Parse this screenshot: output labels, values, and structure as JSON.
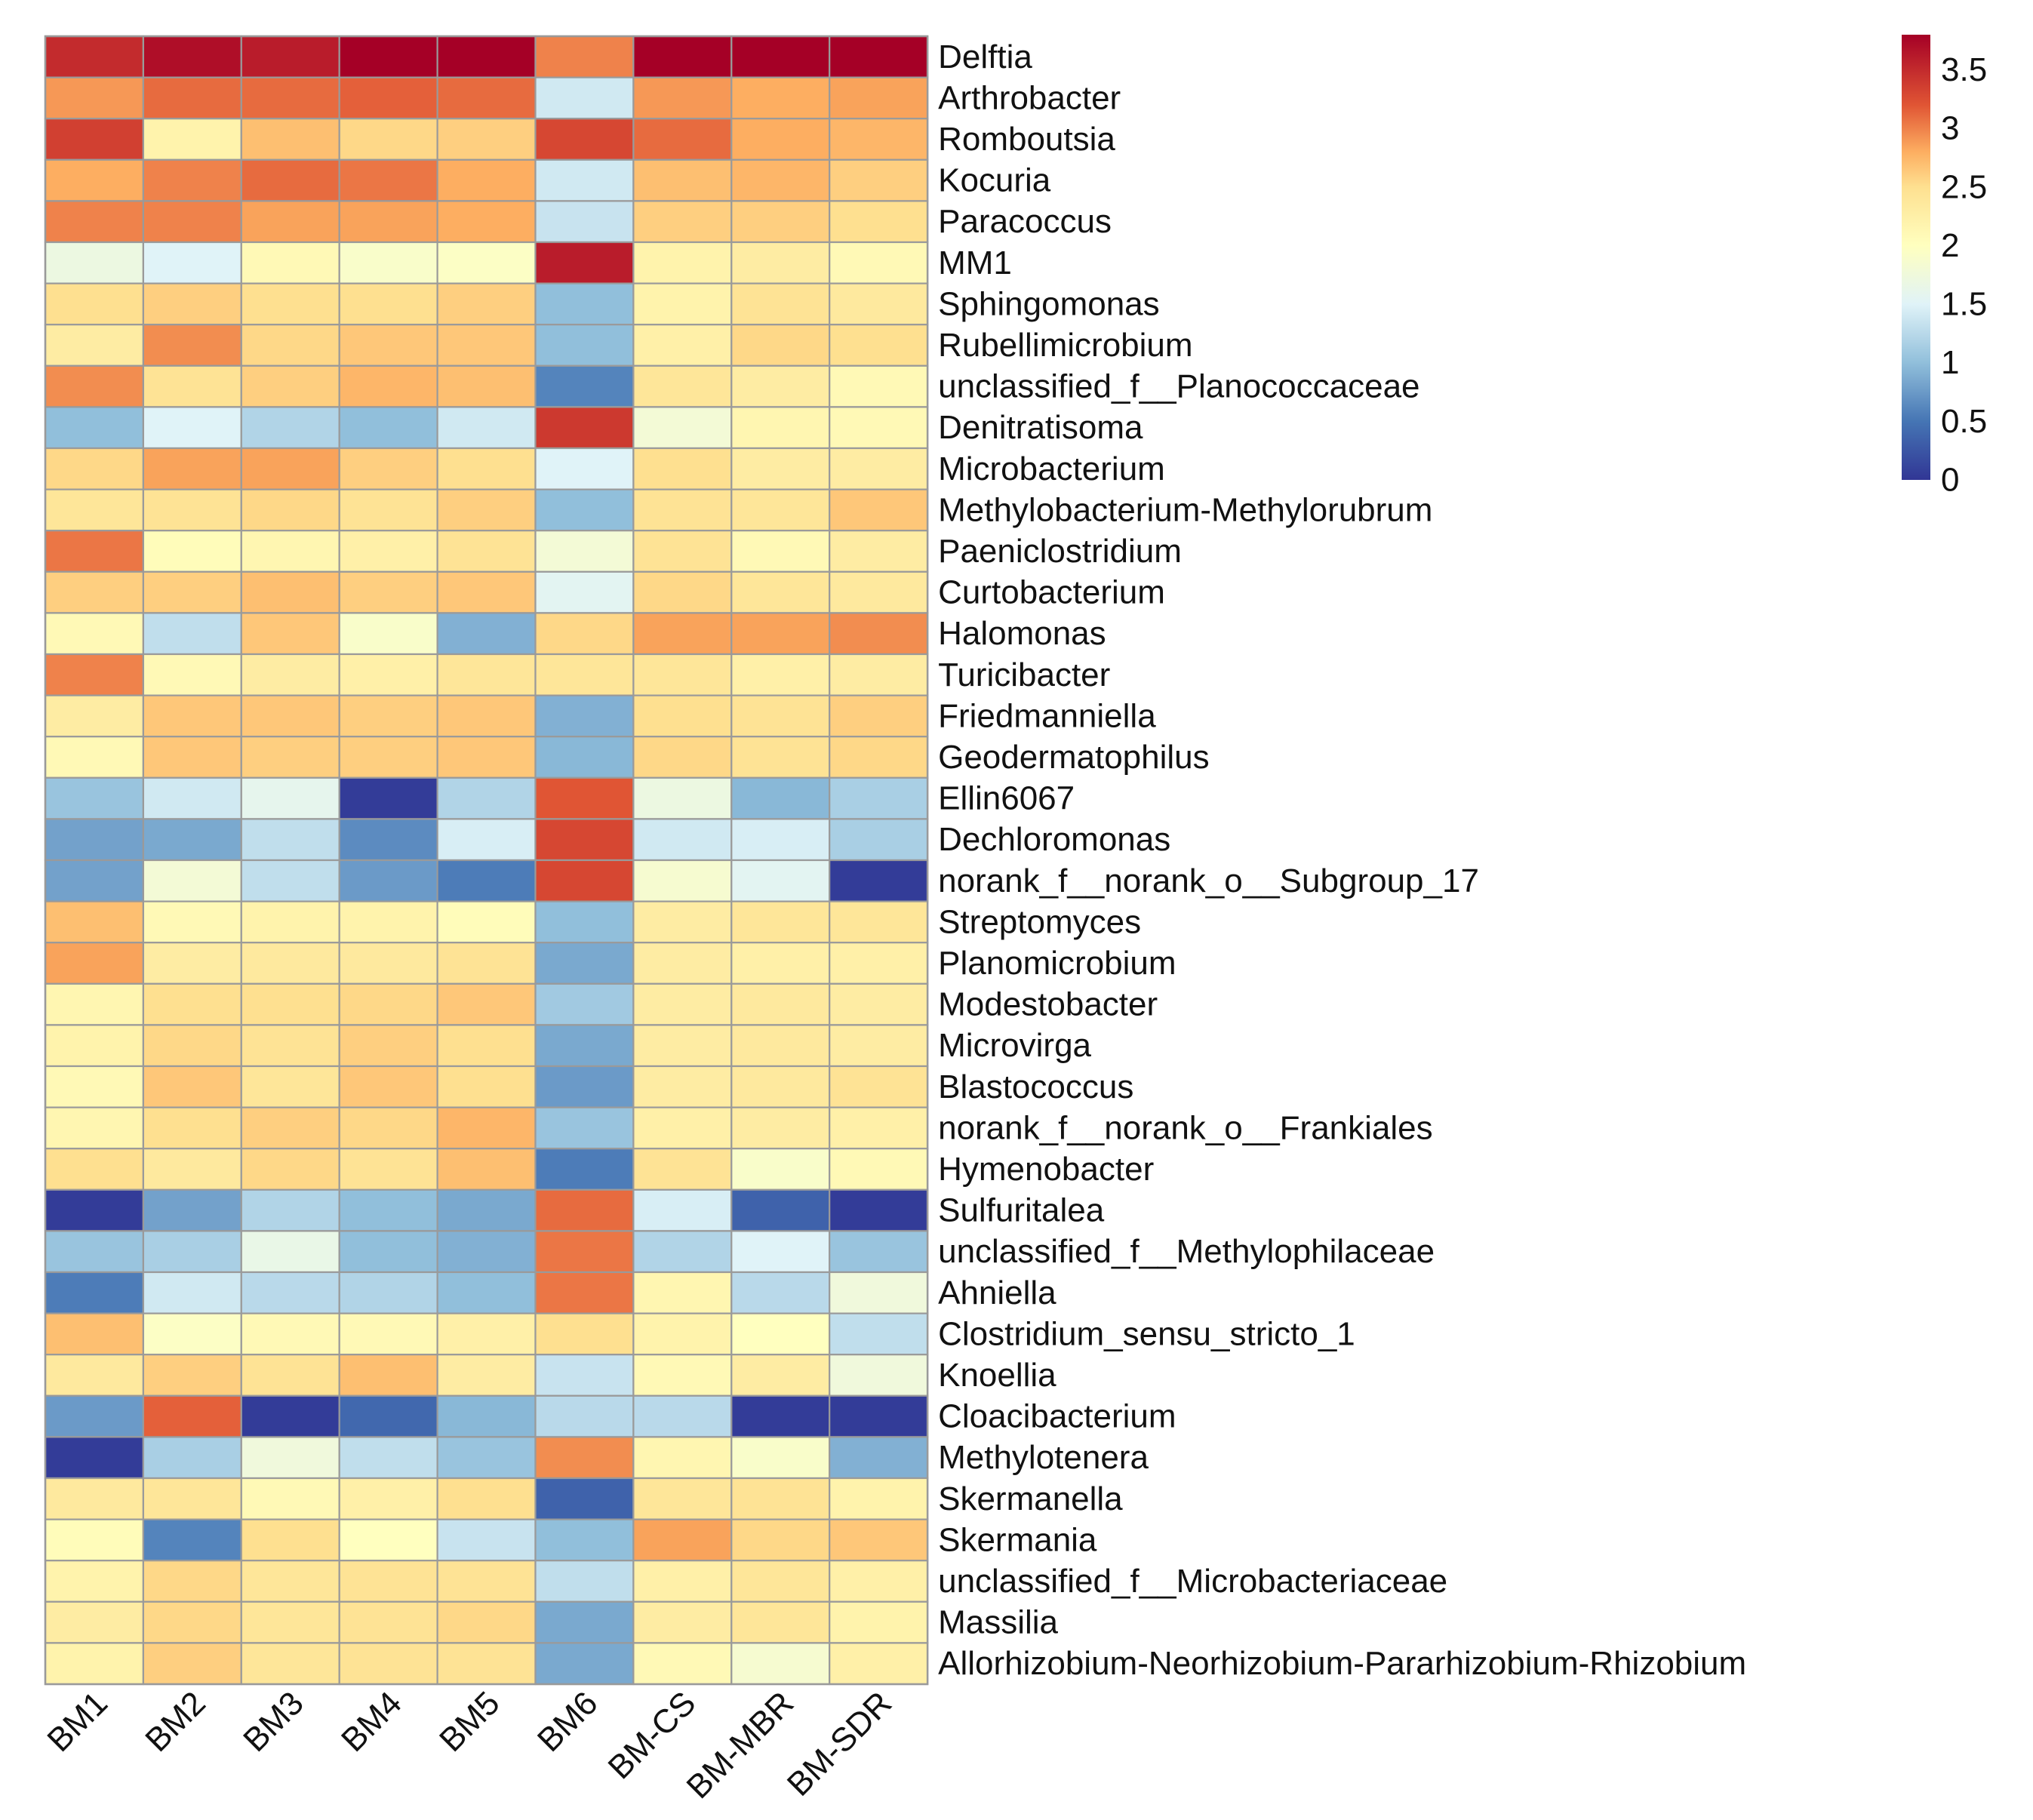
{
  "chart_data": {
    "type": "heatmap",
    "title": "",
    "xlabel": "",
    "ylabel": "",
    "columns": [
      "BM1",
      "BM2",
      "BM3",
      "BM4",
      "BM5",
      "BM6",
      "BM-CS",
      "BM-MBR",
      "BM-SDR"
    ],
    "rows": [
      "Delftia",
      "Arthrobacter",
      "Romboutsia",
      "Kocuria",
      "Paracoccus",
      "MM1",
      "Sphingomonas",
      "Rubellimicrobium",
      "unclassified_f__Planococcaceae",
      "Denitratisoma",
      "Microbacterium",
      "Methylobacterium-Methylorubrum",
      "Paeniclostridium",
      "Curtobacterium",
      "Halomonas",
      "Turicibacter",
      "Friedmanniella",
      "Geodermatophilus",
      "Ellin6067",
      "Dechloromonas",
      "norank_f__norank_o__Subgroup_17",
      "Streptomyces",
      "Planomicrobium",
      "Modestobacter",
      "Microvirga",
      "Blastococcus",
      "norank_f__norank_o__Frankiales",
      "Hymenobacter",
      "Sulfuritalea",
      "unclassified_f__Methylophilaceae",
      "Ahniella",
      "Clostridium_sensu_stricto_1",
      "Knoellia",
      "Cloacibacterium",
      "Methylotenera",
      "Skermanella",
      "Skermania",
      "unclassified_f__Microbacteriaceae",
      "Massilia",
      "Allorhizobium-Neorhizobium-Pararhizobium-Rhizobium"
    ],
    "values": [
      [
        3.5,
        3.7,
        3.6,
        3.8,
        3.8,
        3.0,
        3.8,
        3.8,
        3.8
      ],
      [
        2.9,
        3.1,
        3.1,
        3.15,
        3.1,
        1.4,
        2.9,
        2.8,
        2.85
      ],
      [
        3.35,
        2.2,
        2.7,
        2.55,
        2.6,
        3.3,
        3.1,
        2.8,
        2.75
      ],
      [
        2.8,
        3.0,
        3.1,
        3.05,
        2.8,
        1.4,
        2.7,
        2.75,
        2.6
      ],
      [
        3.0,
        3.0,
        2.85,
        2.85,
        2.8,
        1.35,
        2.6,
        2.6,
        2.5
      ],
      [
        1.7,
        1.5,
        2.1,
        1.9,
        1.95,
        3.6,
        2.2,
        2.3,
        2.1
      ],
      [
        2.5,
        2.6,
        2.5,
        2.5,
        2.6,
        1.0,
        2.2,
        2.45,
        2.35
      ],
      [
        2.3,
        2.95,
        2.55,
        2.65,
        2.65,
        1.0,
        2.25,
        2.55,
        2.5
      ],
      [
        2.95,
        2.45,
        2.6,
        2.75,
        2.7,
        0.6,
        2.4,
        2.3,
        2.1
      ],
      [
        1.0,
        1.5,
        1.2,
        1.0,
        1.4,
        3.4,
        1.8,
        2.15,
        2.1
      ],
      [
        2.55,
        2.85,
        2.85,
        2.6,
        2.5,
        1.5,
        2.5,
        2.3,
        2.3
      ],
      [
        2.4,
        2.45,
        2.55,
        2.45,
        2.6,
        1.0,
        2.45,
        2.4,
        2.65
      ],
      [
        3.05,
        2.05,
        2.15,
        2.25,
        2.45,
        1.8,
        2.45,
        2.1,
        2.3
      ],
      [
        2.6,
        2.6,
        2.7,
        2.6,
        2.65,
        1.55,
        2.55,
        2.4,
        2.35
      ],
      [
        2.1,
        1.3,
        2.65,
        1.9,
        0.9,
        2.55,
        2.85,
        2.85,
        2.95
      ],
      [
        3.0,
        2.1,
        2.3,
        2.25,
        2.4,
        2.4,
        2.4,
        2.25,
        2.3
      ],
      [
        2.3,
        2.65,
        2.65,
        2.6,
        2.65,
        0.9,
        2.5,
        2.45,
        2.6
      ],
      [
        2.1,
        2.65,
        2.6,
        2.6,
        2.65,
        0.95,
        2.55,
        2.45,
        2.55
      ],
      [
        1.05,
        1.4,
        1.6,
        0.05,
        1.2,
        3.2,
        1.7,
        0.95,
        1.15
      ],
      [
        0.8,
        0.85,
        1.3,
        0.65,
        1.45,
        3.3,
        1.4,
        1.45,
        1.15
      ],
      [
        0.8,
        1.8,
        1.3,
        0.75,
        0.55,
        3.3,
        1.85,
        1.55,
        0.05
      ],
      [
        2.7,
        2.1,
        2.2,
        2.2,
        2.05,
        1.0,
        2.3,
        2.4,
        2.4
      ],
      [
        2.85,
        2.3,
        2.35,
        2.35,
        2.45,
        0.85,
        2.3,
        2.25,
        2.25
      ],
      [
        2.15,
        2.5,
        2.5,
        2.55,
        2.65,
        1.1,
        2.3,
        2.35,
        2.3
      ],
      [
        2.2,
        2.55,
        2.45,
        2.6,
        2.5,
        0.85,
        2.3,
        2.35,
        2.3
      ],
      [
        2.1,
        2.65,
        2.4,
        2.65,
        2.5,
        0.75,
        2.3,
        2.35,
        2.45
      ],
      [
        2.15,
        2.5,
        2.6,
        2.55,
        2.75,
        1.05,
        2.25,
        2.3,
        2.25
      ],
      [
        2.5,
        2.35,
        2.55,
        2.45,
        2.7,
        0.55,
        2.45,
        1.9,
        2.1
      ],
      [
        0.05,
        0.8,
        1.2,
        1.0,
        0.85,
        3.1,
        1.45,
        0.35,
        0.05
      ],
      [
        1.05,
        1.15,
        1.65,
        1.0,
        0.9,
        3.05,
        1.2,
        1.5,
        1.05
      ],
      [
        0.55,
        1.4,
        1.25,
        1.2,
        1.0,
        3.05,
        2.15,
        1.25,
        1.75
      ],
      [
        2.7,
        1.95,
        2.1,
        2.1,
        2.25,
        2.5,
        2.2,
        2.0,
        1.3
      ],
      [
        2.35,
        2.6,
        2.45,
        2.7,
        2.3,
        1.35,
        2.1,
        2.3,
        1.75
      ],
      [
        0.75,
        3.15,
        0.05,
        0.4,
        0.95,
        1.25,
        1.25,
        0.05,
        0.05
      ],
      [
        0.05,
        1.15,
        1.75,
        1.3,
        1.05,
        2.95,
        2.15,
        1.9,
        0.9
      ],
      [
        2.35,
        2.4,
        2.1,
        2.25,
        2.5,
        0.35,
        2.4,
        2.45,
        2.2
      ],
      [
        2.05,
        0.6,
        2.5,
        2.0,
        1.35,
        1.0,
        2.85,
        2.55,
        2.65
      ],
      [
        2.2,
        2.55,
        2.4,
        2.45,
        2.45,
        1.3,
        2.25,
        2.4,
        2.25
      ],
      [
        2.3,
        2.55,
        2.4,
        2.45,
        2.55,
        0.85,
        2.3,
        2.4,
        2.2
      ],
      [
        2.2,
        2.6,
        2.4,
        2.45,
        2.45,
        0.85,
        2.1,
        1.85,
        2.25
      ]
    ],
    "color_scale": {
      "min": 0,
      "max": 3.8,
      "stops": [
        [
          0,
          "#313695"
        ],
        [
          0.5,
          "#4575b4"
        ],
        [
          1.0,
          "#91bfdb"
        ],
        [
          1.5,
          "#e0f3f8"
        ],
        [
          2.0,
          "#ffffbf"
        ],
        [
          2.5,
          "#fee090"
        ],
        [
          2.8,
          "#fdae61"
        ],
        [
          3.2,
          "#e05534"
        ],
        [
          3.8,
          "#a50026"
        ]
      ],
      "ticks": [
        "0",
        "0.5",
        "1",
        "1.5",
        "2",
        "2.5",
        "3",
        "3.5"
      ],
      "tick_values": [
        0,
        0.5,
        1,
        1.5,
        2,
        2.5,
        3,
        3.5
      ]
    },
    "grid": true,
    "legend_position": "top-right"
  }
}
